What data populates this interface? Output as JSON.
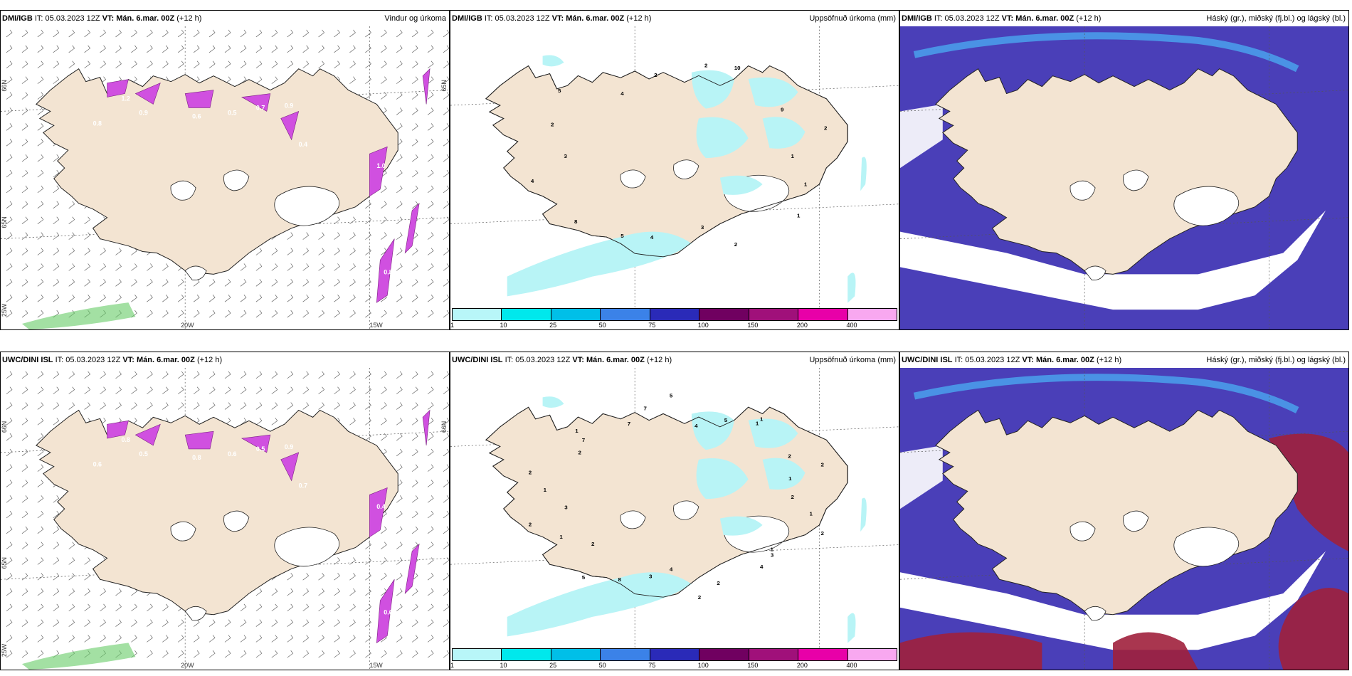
{
  "colors": {
    "land": "#f3e4d2",
    "coast": "#222222",
    "precip_light": "#b8f4f6",
    "purple": "#6a5cd0",
    "deep_blue": "#4a3fb8",
    "light_blue": "#4aa8f0",
    "darkred": "#a0203c",
    "magenta": "#d050e0",
    "green": "#66cc66"
  },
  "panels": [
    {
      "id": "top-wind",
      "source": "DMI/IGB",
      "it_label": "IT:",
      "it_value": "05.03.2023 12Z",
      "vt_label": "VT:",
      "vt_value": "Mán. 6.mar. 00Z",
      "lead": "(+12 h)",
      "title": "Vindur og úrkoma",
      "lat_labels": [
        "66N",
        "65N",
        "25W"
      ],
      "lon_labels": [
        "20W",
        "15W"
      ],
      "edge_right_label": "65N",
      "values": [
        "0.8",
        "0.9",
        "0.6",
        "0.5",
        "0.7",
        "0.9",
        "0.4",
        "1.0",
        "0.6",
        "0.8",
        "1.2"
      ]
    },
    {
      "id": "top-accum",
      "source": "DMI/IGB",
      "it_label": "IT:",
      "it_value": "05.03.2023 12Z",
      "vt_label": "VT:",
      "vt_value": "Mán. 6.mar. 00Z",
      "lead": "(+12 h)",
      "title": "Uppsöfnuð úrkoma (mm)",
      "values": [
        "1",
        "1",
        "1",
        "2",
        "3",
        "4",
        "5",
        "8",
        "4",
        "3",
        "2",
        "5",
        "4",
        "2",
        "2",
        "10",
        "9",
        "2"
      ],
      "colorbar": {
        "labels": [
          "1",
          "10",
          "25",
          "50",
          "75",
          "100",
          "150",
          "200",
          "400"
        ],
        "colors": [
          "#b8f6f8",
          "#00e8ec",
          "#00bfe8",
          "#3b82e8",
          "#2a2ab8",
          "#700060",
          "#a0107a",
          "#e800a8",
          "#f8a8f0"
        ]
      }
    },
    {
      "id": "top-cloud",
      "source": "DMI/IGB",
      "it_label": "IT:",
      "it_value": "05.03.2023 12Z",
      "vt_label": "VT:",
      "vt_value": "Mán. 6.mar. 00Z",
      "lead": "(+12 h)",
      "title": "Háský (gr.), miðský (fj.bl.) og lágský (bl.)"
    },
    {
      "id": "bottom-wind",
      "source": "UWC/DINI ISL",
      "it_label": "IT:",
      "it_value": "05.03.2023 12Z",
      "vt_label": "VT:",
      "vt_value": "Mán. 6.mar. 00Z",
      "lead": "(+12 h)",
      "title": "",
      "lat_labels": [
        "66N",
        "65N",
        "25W"
      ],
      "lon_labels": [
        "20W",
        "15W"
      ],
      "edge_right_label": "66N",
      "values": [
        "0.6",
        "0.5",
        "0.8",
        "0.6",
        "0.5",
        "0.9",
        "0.7",
        "0.4",
        "0.5",
        "0.6",
        "0.8"
      ]
    },
    {
      "id": "bottom-accum",
      "source": "UWC/DINI ISL",
      "it_label": "IT:",
      "it_value": "05.03.2023 12Z",
      "vt_label": "VT:",
      "vt_value": "Mán. 6.mar. 00Z",
      "lead": "(+12 h)",
      "title": "Uppsöfnuð úrkoma (mm)",
      "values": [
        "2",
        "1",
        "2",
        "3",
        "1",
        "4",
        "2",
        "2",
        "4",
        "3",
        "8",
        "5",
        "2",
        "1",
        "2",
        "3",
        "1",
        "2",
        "2",
        "1",
        "7",
        "7",
        "7",
        "5",
        "4",
        "5",
        "1",
        "1",
        "2",
        "2",
        "1"
      ],
      "colorbar": {
        "labels": [
          "1",
          "10",
          "25",
          "50",
          "75",
          "100",
          "150",
          "200",
          "400"
        ],
        "colors": [
          "#b8f6f8",
          "#00e8ec",
          "#00bfe8",
          "#3b82e8",
          "#2a2ab8",
          "#700060",
          "#a0107a",
          "#e800a8",
          "#f8a8f0"
        ]
      }
    },
    {
      "id": "bottom-cloud",
      "source": "UWC/DINI ISL",
      "it_label": "IT:",
      "it_value": "05.03.2023 12Z",
      "vt_label": "VT:",
      "vt_value": "Mán. 6.mar. 00Z",
      "lead": "(+12 h)",
      "title": "Háský (gr.), miðský (fj.bl.) og lágský (bl.)"
    }
  ]
}
